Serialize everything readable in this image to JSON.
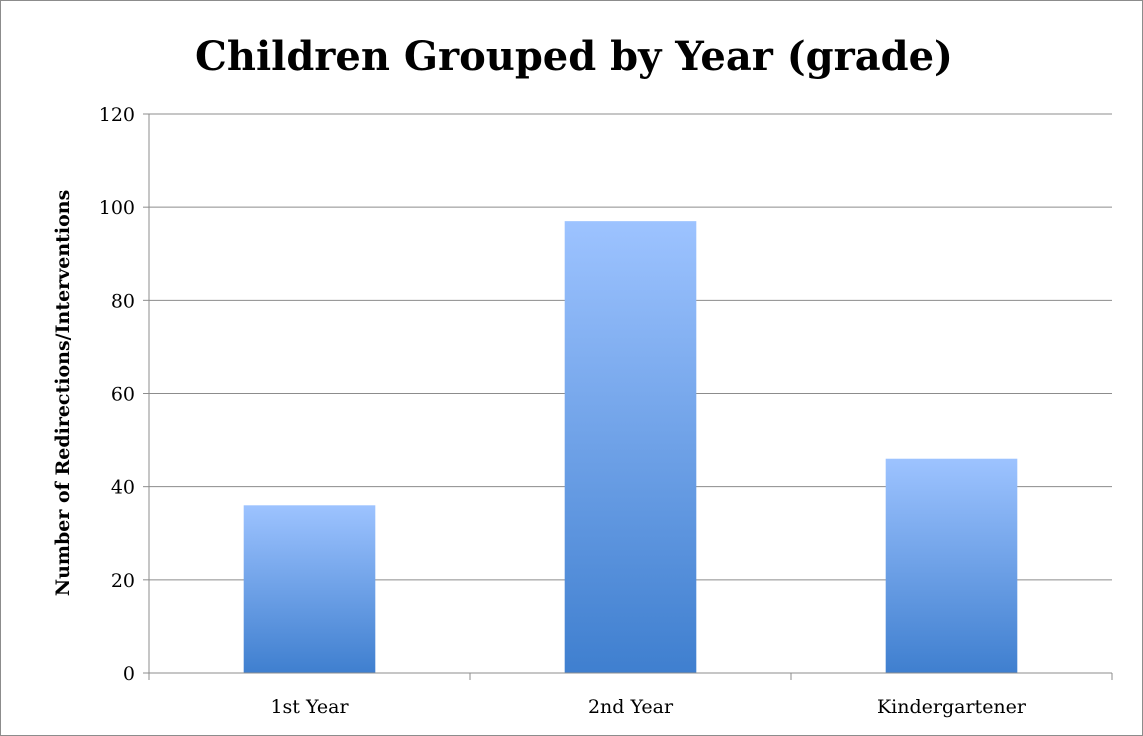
{
  "chart_data": {
    "type": "bar",
    "title": "Children Grouped by Year (grade)",
    "xlabel": "",
    "ylabel": "Number of Redirections/Interventions",
    "categories": [
      "1st Year",
      "2nd Year",
      "Kindergartener"
    ],
    "values": [
      36,
      97,
      46
    ],
    "ylim": [
      0,
      120
    ],
    "yticks": [
      0,
      20,
      40,
      60,
      80,
      100,
      120
    ],
    "grid": true,
    "legend": "none",
    "colors": {
      "bar_top": "#9dc3ff",
      "bar_bottom": "#3f7fcf",
      "grid": "#8c8c8c"
    }
  }
}
